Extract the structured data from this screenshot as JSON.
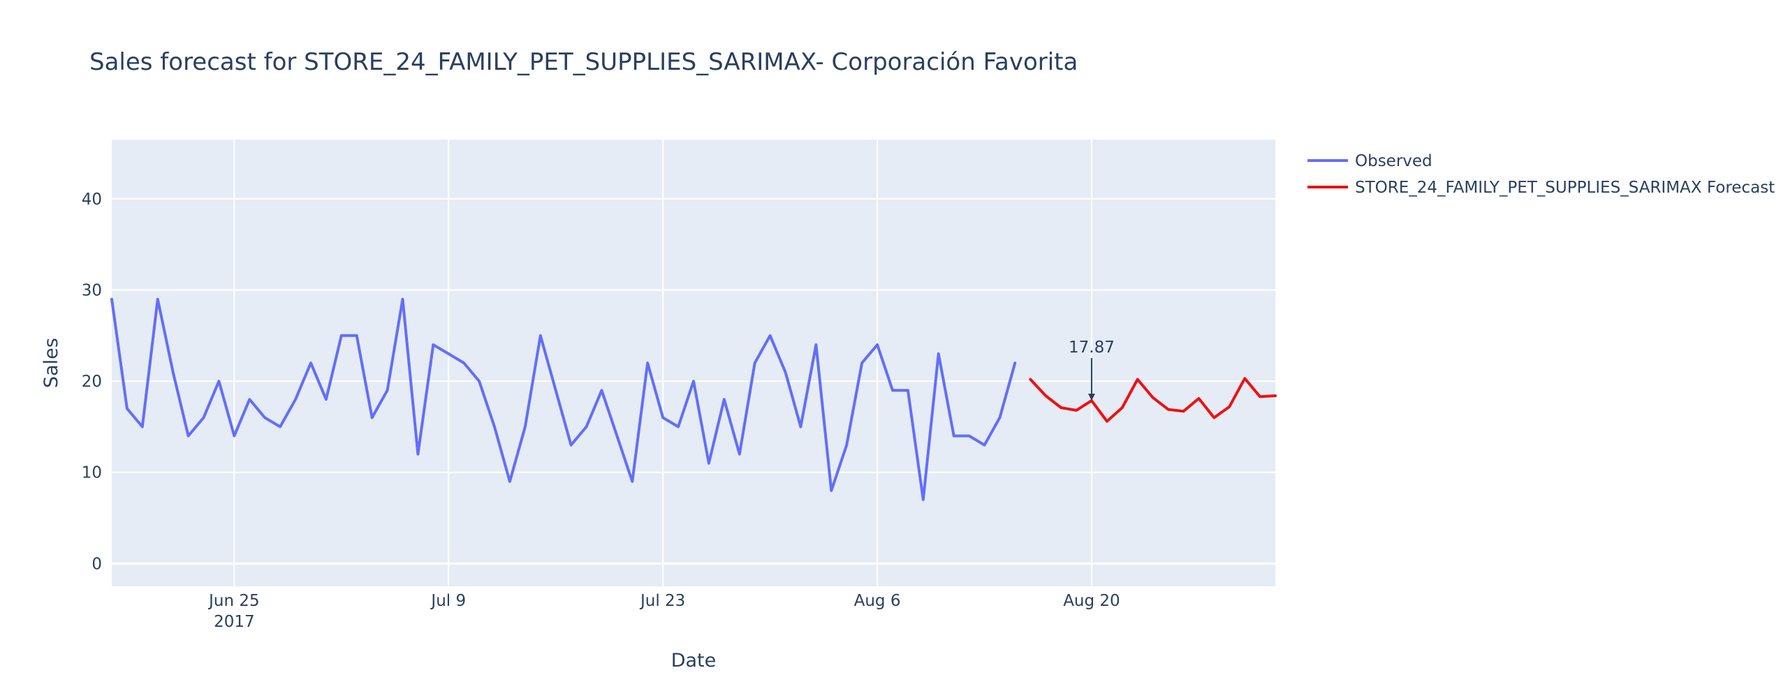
{
  "chart_data": {
    "type": "line",
    "title": "Sales forecast for STORE_24_FAMILY_PET_SUPPLIES_SARIMAX- Corporación Favorita",
    "xlabel": "Date",
    "ylabel": "Sales",
    "x_axis": {
      "type": "date",
      "range": [
        "2017-06-17",
        "2017-09-01"
      ],
      "ticks": [
        {
          "date": "2017-06-25",
          "label": "Jun 25",
          "sublabel": "2017"
        },
        {
          "date": "2017-07-09",
          "label": "Jul 9",
          "sublabel": ""
        },
        {
          "date": "2017-07-23",
          "label": "Jul 23",
          "sublabel": ""
        },
        {
          "date": "2017-08-06",
          "label": "Aug 6",
          "sublabel": ""
        },
        {
          "date": "2017-08-20",
          "label": "Aug 20",
          "sublabel": ""
        }
      ]
    },
    "y_axis": {
      "range": [
        -2.5,
        46.5
      ],
      "ticks": [
        0,
        10,
        20,
        30,
        40
      ]
    },
    "grid": true,
    "background": "#e5ecf6",
    "legend_position": "right",
    "series": [
      {
        "name": "Observed",
        "color": "#636efa",
        "x": [
          "2017-06-17",
          "2017-06-18",
          "2017-06-19",
          "2017-06-20",
          "2017-06-21",
          "2017-06-22",
          "2017-06-23",
          "2017-06-24",
          "2017-06-25",
          "2017-06-26",
          "2017-06-27",
          "2017-06-28",
          "2017-06-29",
          "2017-06-30",
          "2017-07-01",
          "2017-07-02",
          "2017-07-03",
          "2017-07-04",
          "2017-07-05",
          "2017-07-06",
          "2017-07-07",
          "2017-07-08",
          "2017-07-09",
          "2017-07-10",
          "2017-07-11",
          "2017-07-12",
          "2017-07-13",
          "2017-07-14",
          "2017-07-15",
          "2017-07-16",
          "2017-07-17",
          "2017-07-18",
          "2017-07-19",
          "2017-07-20",
          "2017-07-21",
          "2017-07-22",
          "2017-07-23",
          "2017-07-24",
          "2017-07-25",
          "2017-07-26",
          "2017-07-27",
          "2017-07-28",
          "2017-07-29",
          "2017-07-30",
          "2017-07-31",
          "2017-08-01",
          "2017-08-02",
          "2017-08-03",
          "2017-08-04",
          "2017-08-05",
          "2017-08-06",
          "2017-08-07",
          "2017-08-08",
          "2017-08-09",
          "2017-08-10",
          "2017-08-11",
          "2017-08-12",
          "2017-08-13",
          "2017-08-14",
          "2017-08-15"
        ],
        "y": [
          29,
          17,
          15,
          29,
          21,
          14,
          16,
          20,
          14,
          18,
          16,
          15,
          18,
          22,
          18,
          25,
          25,
          16,
          19,
          29,
          12,
          24,
          23,
          22,
          20,
          15,
          9,
          15,
          25,
          19,
          13,
          15,
          19,
          14,
          9,
          22,
          16,
          15,
          20,
          11,
          18,
          12,
          22,
          25,
          21,
          15,
          24,
          8,
          13,
          22,
          24,
          19,
          19,
          7,
          23,
          14,
          14,
          13,
          16,
          22
        ]
      },
      {
        "name": "STORE_24_FAMILY_PET_SUPPLIES_SARIMAX Forecast",
        "color": "#ee1111",
        "x": [
          "2017-08-16",
          "2017-08-17",
          "2017-08-18",
          "2017-08-19",
          "2017-08-20",
          "2017-08-21",
          "2017-08-22",
          "2017-08-23",
          "2017-08-24",
          "2017-08-25",
          "2017-08-26",
          "2017-08-27",
          "2017-08-28",
          "2017-08-29",
          "2017-08-30",
          "2017-08-31",
          "2017-09-01"
        ],
        "y": [
          20.2,
          18.4,
          17.1,
          16.8,
          17.87,
          15.6,
          17.1,
          20.2,
          18.2,
          16.9,
          16.7,
          18.1,
          16.0,
          17.2,
          20.3,
          18.3,
          18.4
        ]
      }
    ],
    "annotations": [
      {
        "x": "2017-08-20",
        "y": 17.87,
        "text": "17.87"
      }
    ]
  }
}
